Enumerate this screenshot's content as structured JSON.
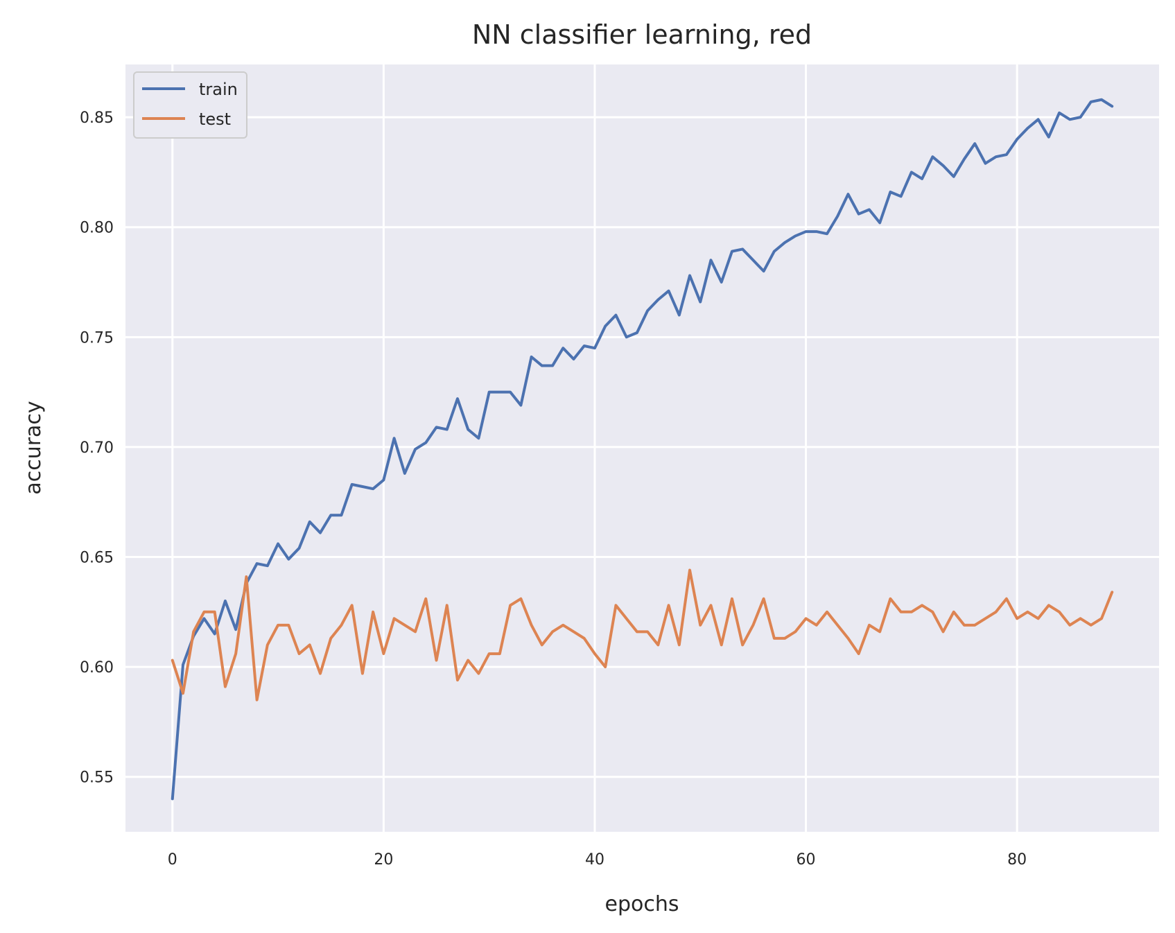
{
  "chart_data": {
    "type": "line",
    "title": "NN classifier learning, red",
    "xlabel": "epochs",
    "ylabel": "accuracy",
    "xlim": [
      -4.45,
      93.45
    ],
    "ylim": [
      0.525,
      0.874
    ],
    "xticks": [
      0,
      20,
      40,
      60,
      80
    ],
    "yticks": [
      0.55,
      0.6,
      0.65,
      0.7,
      0.75,
      0.8,
      0.85
    ],
    "ytick_labels": [
      "0.55",
      "0.60",
      "0.65",
      "0.70",
      "0.75",
      "0.80",
      "0.85"
    ],
    "grid": true,
    "legend_position": "top-left",
    "background": "#eaeaf2",
    "x": [
      0,
      1,
      2,
      3,
      4,
      5,
      6,
      7,
      8,
      9,
      10,
      11,
      12,
      13,
      14,
      15,
      16,
      17,
      18,
      19,
      20,
      21,
      22,
      23,
      24,
      25,
      26,
      27,
      28,
      29,
      30,
      31,
      32,
      33,
      34,
      35,
      36,
      37,
      38,
      39,
      40,
      41,
      42,
      43,
      44,
      45,
      46,
      47,
      48,
      49,
      50,
      51,
      52,
      53,
      54,
      55,
      56,
      57,
      58,
      59,
      60,
      61,
      62,
      63,
      64,
      65,
      66,
      67,
      68,
      69,
      70,
      71,
      72,
      73,
      74,
      75,
      76,
      77,
      78,
      79,
      80,
      81,
      82,
      83,
      84,
      85,
      86,
      87,
      88,
      89
    ],
    "series": [
      {
        "name": "train",
        "color": "#4c72b0",
        "values": [
          0.54,
          0.601,
          0.614,
          0.622,
          0.615,
          0.63,
          0.617,
          0.638,
          0.647,
          0.646,
          0.656,
          0.649,
          0.654,
          0.666,
          0.661,
          0.669,
          0.669,
          0.683,
          0.682,
          0.681,
          0.685,
          0.704,
          0.688,
          0.699,
          0.702,
          0.709,
          0.708,
          0.722,
          0.708,
          0.704,
          0.725,
          0.725,
          0.725,
          0.719,
          0.741,
          0.737,
          0.737,
          0.745,
          0.74,
          0.746,
          0.745,
          0.755,
          0.76,
          0.75,
          0.752,
          0.762,
          0.767,
          0.771,
          0.76,
          0.778,
          0.766,
          0.785,
          0.775,
          0.789,
          0.79,
          0.785,
          0.78,
          0.789,
          0.793,
          0.796,
          0.798,
          0.798,
          0.797,
          0.805,
          0.815,
          0.806,
          0.808,
          0.802,
          0.816,
          0.814,
          0.825,
          0.822,
          0.832,
          0.828,
          0.823,
          0.831,
          0.838,
          0.829,
          0.832,
          0.833,
          0.84,
          0.845,
          0.849,
          0.841,
          0.852,
          0.849,
          0.85,
          0.857,
          0.858,
          0.855
        ]
      },
      {
        "name": "test",
        "color": "#dd8452",
        "values": [
          0.603,
          0.588,
          0.616,
          0.625,
          0.625,
          0.591,
          0.606,
          0.641,
          0.585,
          0.61,
          0.619,
          0.619,
          0.606,
          0.61,
          0.597,
          0.613,
          0.619,
          0.628,
          0.597,
          0.625,
          0.606,
          0.622,
          0.619,
          0.616,
          0.631,
          0.603,
          0.628,
          0.594,
          0.603,
          0.597,
          0.606,
          0.606,
          0.628,
          0.631,
          0.619,
          0.61,
          0.616,
          0.619,
          0.616,
          0.613,
          0.606,
          0.6,
          0.628,
          0.622,
          0.616,
          0.616,
          0.61,
          0.628,
          0.61,
          0.644,
          0.619,
          0.628,
          0.61,
          0.631,
          0.61,
          0.619,
          0.631,
          0.613,
          0.613,
          0.616,
          0.622,
          0.619,
          0.625,
          0.619,
          0.613,
          0.606,
          0.619,
          0.616,
          0.631,
          0.625,
          0.625,
          0.628,
          0.625,
          0.616,
          0.625,
          0.619,
          0.619,
          0.622,
          0.625,
          0.631,
          0.622,
          0.625,
          0.622,
          0.628,
          0.625,
          0.619,
          0.622,
          0.619,
          0.622,
          0.634
        ]
      }
    ]
  }
}
